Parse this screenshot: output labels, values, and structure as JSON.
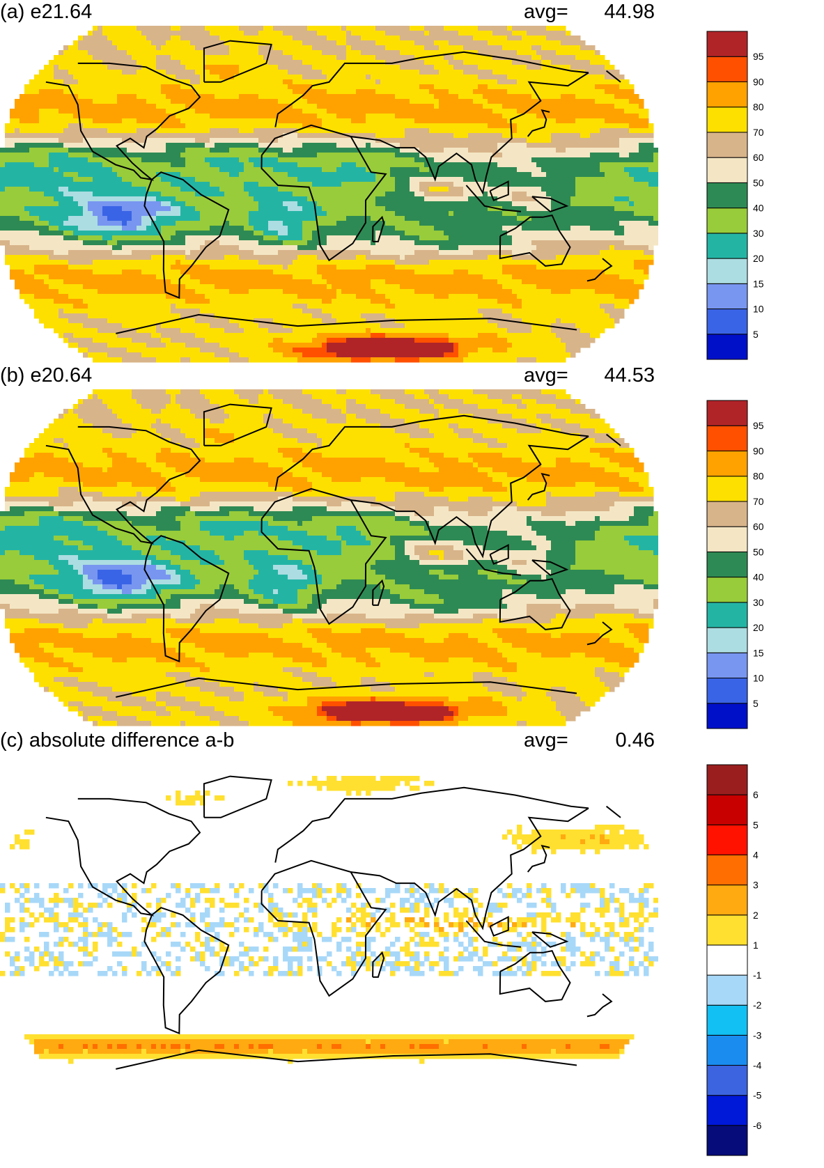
{
  "panels": [
    {
      "title": "(a) e21.64",
      "avg_label": "avg=",
      "avg_value": "44.98",
      "field": "absolute",
      "colorbar": {
        "labels": [
          "5",
          "10",
          "15",
          "20",
          "30",
          "40",
          "50",
          "60",
          "70",
          "80",
          "90",
          "95"
        ],
        "colors": [
          "#0010c8",
          "#3a64e6",
          "#7896f0",
          "#acdde2",
          "#24b4a4",
          "#98cc3a",
          "#2e8a54",
          "#f4e6c4",
          "#d8b48a",
          "#fde000",
          "#ffa200",
          "#ff5000",
          "#b02428"
        ]
      }
    },
    {
      "title": "(b) e20.64",
      "avg_label": "avg=",
      "avg_value": "44.53",
      "field": "absolute",
      "colorbar": {
        "labels": [
          "5",
          "10",
          "15",
          "20",
          "30",
          "40",
          "50",
          "60",
          "70",
          "80",
          "90",
          "95"
        ],
        "colors": [
          "#0010c8",
          "#3a64e6",
          "#7896f0",
          "#acdde2",
          "#24b4a4",
          "#98cc3a",
          "#2e8a54",
          "#f4e6c4",
          "#d8b48a",
          "#fde000",
          "#ffa200",
          "#ff5000",
          "#b02428"
        ]
      }
    },
    {
      "title": "(c) absolute difference a-b",
      "avg_label": "avg=",
      "avg_value": "0.46",
      "field": "difference",
      "colorbar": {
        "labels": [
          "-6",
          "-5",
          "-4",
          "-3",
          "-2",
          "-1",
          "1",
          "2",
          "3",
          "4",
          "5",
          "6"
        ],
        "colors": [
          "#060c7a",
          "#0018d8",
          "#3c64e0",
          "#1a8cf0",
          "#12c0f4",
          "#a8d8f8",
          "#ffffff",
          "#ffe030",
          "#ffaa10",
          "#ff6e00",
          "#ff1200",
          "#c80000",
          "#9a1e1e"
        ]
      }
    }
  ]
}
